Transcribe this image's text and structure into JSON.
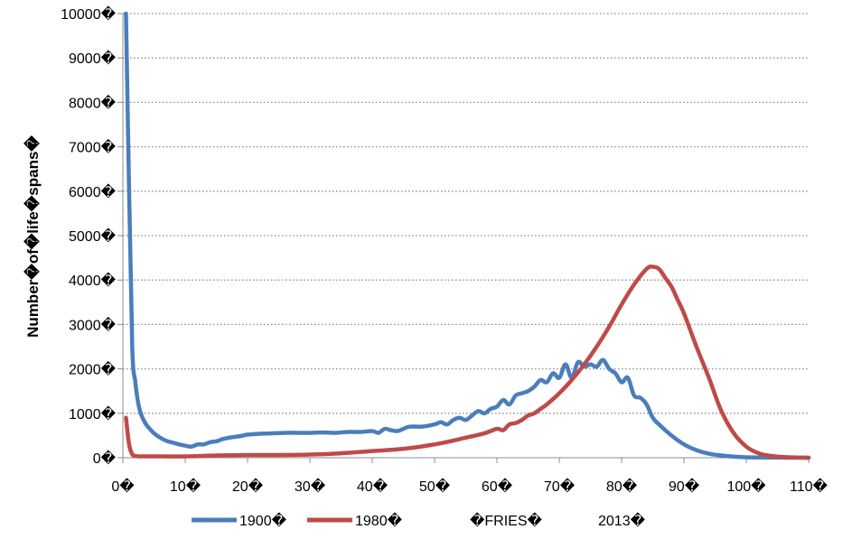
{
  "chart_data": {
    "type": "line",
    "title": "",
    "xlabel": "",
    "ylabel": "Number�of�life�spans�",
    "xlim": [
      0,
      110
    ],
    "ylim": [
      0,
      10000
    ],
    "grid": "horizontal-dotted",
    "legend_position": "bottom",
    "x_ticks": [
      0,
      10,
      20,
      30,
      40,
      50,
      60,
      70,
      80,
      90,
      100,
      110
    ],
    "y_ticks": [
      0,
      1000,
      2000,
      3000,
      4000,
      5000,
      6000,
      7000,
      8000,
      9000,
      10000
    ],
    "x_tick_labels": [
      "0�",
      "10�",
      "20�",
      "30�",
      "40�",
      "50�",
      "60�",
      "70�",
      "80�",
      "90�",
      "100�",
      "110�"
    ],
    "y_tick_labels": [
      "0�",
      "1000�",
      "2000�",
      "3000�",
      "4000�",
      "5000�",
      "6000�",
      "7000�",
      "8000�",
      "9000�",
      "10000�"
    ],
    "series": [
      {
        "name": "1900�",
        "color": "#4a7ebb",
        "x": [
          0.5,
          1,
          1.5,
          2,
          2.5,
          3,
          3.5,
          4,
          5,
          6,
          7,
          8,
          9,
          10,
          11,
          12,
          13,
          14,
          15,
          16,
          17,
          18,
          19,
          20,
          22,
          24,
          26,
          28,
          30,
          32,
          34,
          36,
          38,
          40,
          41,
          42,
          43,
          44,
          45,
          46,
          48,
          50,
          51,
          52,
          53,
          54,
          55,
          56,
          57,
          58,
          59,
          60,
          61,
          62,
          63,
          64,
          65,
          66,
          67,
          68,
          69,
          70,
          71,
          72,
          73,
          74,
          75,
          76,
          77,
          78,
          79,
          80,
          81,
          82,
          83,
          84,
          85,
          86,
          88,
          90,
          92,
          94,
          96,
          98,
          100,
          103,
          106,
          110
        ],
        "y": [
          10000,
          6000,
          2500,
          1700,
          1200,
          950,
          800,
          700,
          550,
          450,
          380,
          340,
          300,
          270,
          250,
          300,
          300,
          350,
          370,
          420,
          450,
          470,
          490,
          520,
          540,
          550,
          560,
          560,
          560,
          570,
          560,
          580,
          580,
          600,
          560,
          650,
          620,
          600,
          650,
          700,
          700,
          750,
          800,
          750,
          850,
          900,
          850,
          950,
          1050,
          1000,
          1100,
          1150,
          1300,
          1200,
          1400,
          1450,
          1500,
          1600,
          1750,
          1700,
          1900,
          1800,
          2100,
          1800,
          2150,
          2050,
          2100,
          2050,
          2200,
          2000,
          1900,
          1700,
          1800,
          1400,
          1350,
          1200,
          900,
          750,
          500,
          300,
          170,
          90,
          50,
          25,
          10,
          5,
          2,
          0
        ]
      },
      {
        "name": "1980�",
        "color": "#be4b48",
        "x": [
          0.5,
          1,
          1.5,
          2,
          3,
          5,
          10,
          15,
          20,
          25,
          30,
          35,
          40,
          45,
          50,
          55,
          58,
          60,
          61,
          62,
          63,
          64,
          65,
          66,
          67,
          68,
          70,
          72,
          74,
          76,
          78,
          80,
          82,
          84,
          85,
          86,
          87,
          88,
          89,
          90,
          92,
          94,
          96,
          98,
          100,
          102,
          104,
          106,
          108,
          110
        ],
        "y": [
          900,
          300,
          80,
          40,
          30,
          30,
          30,
          50,
          60,
          60,
          70,
          100,
          150,
          200,
          300,
          450,
          550,
          650,
          620,
          750,
          780,
          850,
          950,
          1000,
          1100,
          1200,
          1450,
          1750,
          2100,
          2500,
          2950,
          3450,
          3900,
          4250,
          4300,
          4250,
          4050,
          3850,
          3550,
          3250,
          2500,
          1800,
          1050,
          550,
          250,
          100,
          40,
          15,
          5,
          0
        ]
      }
    ],
    "extra_legend": [
      "�FRIES�",
      "2013�"
    ]
  }
}
